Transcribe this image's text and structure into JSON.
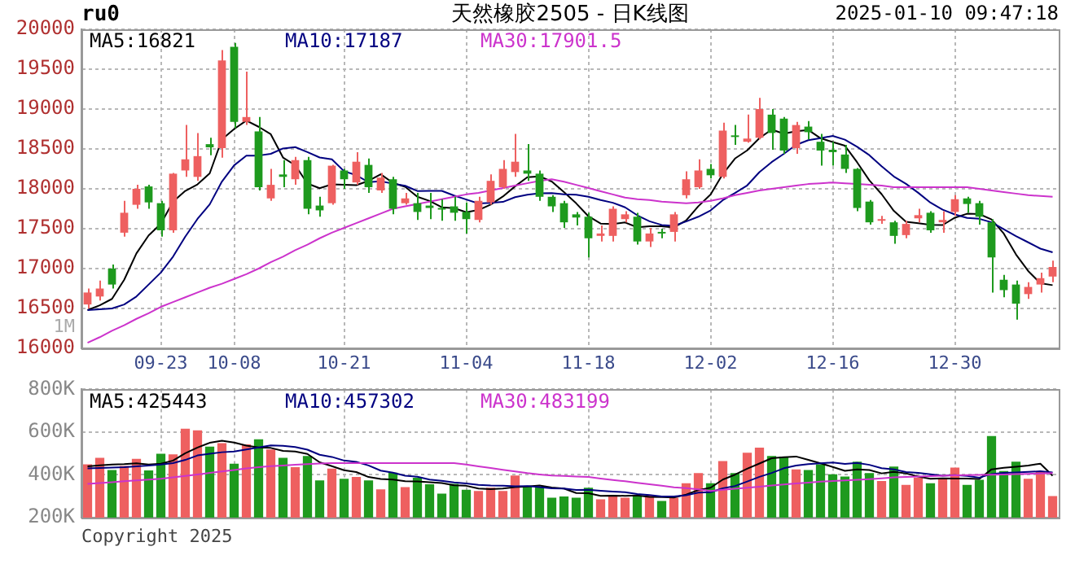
{
  "chart_data": [
    {
      "type": "candlestick",
      "title": "天然橡胶2505 - 日K线图",
      "annotations": [
        "ru0",
        "2025-01-10 09:47:18",
        "1M"
      ],
      "categories": [
        null,
        null,
        null,
        null,
        null,
        null,
        "09-23",
        null,
        null,
        null,
        null,
        null,
        "10-08",
        null,
        null,
        null,
        null,
        null,
        null,
        null,
        null,
        "10-21",
        null,
        null,
        null,
        null,
        null,
        null,
        null,
        null,
        null,
        "11-04",
        null,
        null,
        null,
        null,
        null,
        null,
        null,
        null,
        null,
        "11-18",
        null,
        null,
        null,
        null,
        null,
        null,
        null,
        null,
        null,
        "12-02",
        null,
        null,
        null,
        null,
        null,
        null,
        null,
        null,
        null,
        "12-16",
        null,
        null,
        null,
        null,
        null,
        null,
        null,
        null,
        null,
        "12-30",
        null,
        null,
        null,
        null,
        null,
        null,
        null,
        null
      ],
      "ohlc": [
        [
          16550,
          16750,
          16500,
          16700
        ],
        [
          16650,
          16850,
          16600,
          16750
        ],
        [
          17000,
          17050,
          16750,
          16800
        ],
        [
          17450,
          17850,
          17400,
          17700
        ],
        [
          17800,
          18050,
          17750,
          18000
        ],
        [
          18030,
          18050,
          17750,
          17830
        ],
        [
          17820,
          17850,
          17400,
          17480
        ],
        [
          17480,
          18200,
          17450,
          18190
        ],
        [
          18230,
          18800,
          18150,
          18370
        ],
        [
          18150,
          18700,
          18100,
          18410
        ],
        [
          18560,
          18640,
          18420,
          18520
        ],
        [
          18510,
          19740,
          18390,
          19610
        ],
        [
          19780,
          19830,
          18760,
          18840
        ],
        [
          18840,
          19470,
          18800,
          18900
        ],
        [
          18720,
          18900,
          17980,
          18020
        ],
        [
          17880,
          18250,
          17850,
          18050
        ],
        [
          18180,
          18360,
          18020,
          18150
        ],
        [
          18120,
          18400,
          18050,
          18360
        ],
        [
          18360,
          18400,
          17680,
          17750
        ],
        [
          17790,
          17900,
          17650,
          17730
        ],
        [
          17820,
          18300,
          17800,
          18290
        ],
        [
          18230,
          18250,
          18000,
          18120
        ],
        [
          18080,
          18460,
          18050,
          18340
        ],
        [
          18300,
          18380,
          17950,
          18020
        ],
        [
          17980,
          18200,
          17950,
          18140
        ],
        [
          18120,
          18150,
          17680,
          17750
        ],
        [
          17820,
          17950,
          17800,
          17880
        ],
        [
          17820,
          17950,
          17610,
          17710
        ],
        [
          17790,
          17950,
          17620,
          17760
        ],
        [
          17760,
          17870,
          17600,
          17740
        ],
        [
          17780,
          17900,
          17600,
          17700
        ],
        [
          17710,
          17830,
          17440,
          17620
        ],
        [
          17610,
          17900,
          17580,
          17850
        ],
        [
          17830,
          18180,
          17800,
          18100
        ],
        [
          18020,
          18360,
          18000,
          18250
        ],
        [
          18210,
          18690,
          18150,
          18340
        ],
        [
          18230,
          18560,
          18100,
          18190
        ],
        [
          18190,
          18230,
          17850,
          17900
        ],
        [
          17900,
          17920,
          17710,
          17780
        ],
        [
          17820,
          17850,
          17510,
          17580
        ],
        [
          17680,
          17710,
          17540,
          17640
        ],
        [
          17650,
          17700,
          17140,
          17380
        ],
        [
          17410,
          17540,
          17340,
          17440
        ],
        [
          17410,
          17780,
          17340,
          17750
        ],
        [
          17620,
          17720,
          17580,
          17680
        ],
        [
          17650,
          17700,
          17300,
          17340
        ],
        [
          17340,
          17510,
          17270,
          17440
        ],
        [
          17460,
          17500,
          17380,
          17440
        ],
        [
          17460,
          17710,
          17340,
          17680
        ],
        [
          17920,
          18220,
          17880,
          18120
        ],
        [
          18020,
          18370,
          18000,
          18230
        ],
        [
          18250,
          18310,
          18130,
          18170
        ],
        [
          18150,
          18830,
          18130,
          18730
        ],
        [
          18670,
          18800,
          18550,
          18650
        ],
        [
          18590,
          18930,
          18580,
          18630
        ],
        [
          18640,
          19140,
          18620,
          19000
        ],
        [
          18930,
          19000,
          18490,
          18700
        ],
        [
          18880,
          18900,
          18440,
          18480
        ],
        [
          18510,
          18840,
          18440,
          18800
        ],
        [
          18780,
          18850,
          18620,
          18710
        ],
        [
          18590,
          18690,
          18290,
          18480
        ],
        [
          18490,
          18590,
          18290,
          18460
        ],
        [
          18430,
          18550,
          18200,
          18250
        ],
        [
          18250,
          18260,
          17720,
          17760
        ],
        [
          17840,
          17860,
          17550,
          17580
        ],
        [
          17600,
          17660,
          17560,
          17620
        ],
        [
          17580,
          17600,
          17310,
          17410
        ],
        [
          17420,
          17600,
          17380,
          17560
        ],
        [
          17630,
          17750,
          17580,
          17670
        ],
        [
          17700,
          17720,
          17450,
          17480
        ],
        [
          17580,
          17720,
          17450,
          17610
        ],
        [
          17710,
          17920,
          17660,
          17870
        ],
        [
          17880,
          17900,
          17700,
          17810
        ],
        [
          17820,
          17850,
          17550,
          17650
        ],
        [
          17580,
          17620,
          16700,
          17140
        ],
        [
          16860,
          16920,
          16640,
          16730
        ],
        [
          16800,
          16850,
          16360,
          16560
        ],
        [
          16680,
          16830,
          16620,
          16770
        ],
        [
          16800,
          16950,
          16700,
          16880
        ],
        [
          16900,
          17100,
          16830,
          17020
        ]
      ],
      "colors": [
        "#ee6060",
        "#ee6060",
        "#1e9a1e",
        "#ee6060",
        "#ee6060",
        "#1e9a1e",
        "#1e9a1e",
        "#ee6060",
        "#ee6060",
        "#ee6060",
        "#1e9a1e",
        "#ee6060",
        "#1e9a1e",
        "#ee6060",
        "#1e9a1e",
        "#ee6060",
        "#1e9a1e",
        "#ee6060",
        "#1e9a1e",
        "#1e9a1e",
        "#ee6060",
        "#1e9a1e",
        "#ee6060",
        "#1e9a1e",
        "#ee6060",
        "#1e9a1e",
        "#ee6060",
        "#1e9a1e",
        "#1e9a1e",
        "#1e9a1e",
        "#1e9a1e",
        "#1e9a1e",
        "#ee6060",
        "#ee6060",
        "#ee6060",
        "#ee6060",
        "#1e9a1e",
        "#1e9a1e",
        "#1e9a1e",
        "#1e9a1e",
        "#1e9a1e",
        "#1e9a1e",
        "#ee6060",
        "#ee6060",
        "#ee6060",
        "#1e9a1e",
        "#ee6060",
        "#1e9a1e",
        "#ee6060",
        "#ee6060",
        "#ee6060",
        "#1e9a1e",
        "#ee6060",
        "#1e9a1e",
        "#ee6060",
        "#ee6060",
        "#1e9a1e",
        "#1e9a1e",
        "#ee6060",
        "#1e9a1e",
        "#1e9a1e",
        "#1e9a1e",
        "#1e9a1e",
        "#1e9a1e",
        "#1e9a1e",
        "#ee6060",
        "#1e9a1e",
        "#ee6060",
        "#ee6060",
        "#1e9a1e",
        "#ee6060",
        "#ee6060",
        "#1e9a1e",
        "#1e9a1e",
        "#1e9a1e",
        "#1e9a1e",
        "#1e9a1e",
        "#ee6060",
        "#ee6060",
        "#ee6060"
      ],
      "series": [
        {
          "type": "line",
          "name": "MA5:16821",
          "color": "#000000",
          "values": [
            16480,
            16540,
            16620,
            16860,
            17190,
            17416,
            17562,
            17840,
            17974,
            18056,
            18194,
            18620,
            18750,
            18856,
            18778,
            18684,
            18392,
            18296,
            18066,
            18008,
            18056,
            18050,
            18046,
            18100,
            18182,
            18074,
            18026,
            17900,
            17848,
            17768,
            17758,
            17706,
            17734,
            17802,
            17904,
            18032,
            18146,
            18156,
            18092,
            17958,
            17818,
            17656,
            17564,
            17558,
            17578,
            17518,
            17530,
            17530,
            17516,
            17604,
            17782,
            17928,
            18186,
            18380,
            18482,
            18636,
            18742,
            18692,
            18722,
            18738,
            18634,
            18586,
            18540,
            18332,
            18106,
            17934,
            17724,
            17586,
            17568,
            17548,
            17546,
            17638,
            17688,
            17684,
            17616,
            17440,
            17178,
            16970,
            16816,
            16792
          ]
        },
        {
          "type": "line",
          "name": "MA10:17187",
          "color": "#000080",
          "values": [
            16480,
            16490,
            16500,
            16550,
            16650,
            16800,
            16950,
            17150,
            17400,
            17623,
            17805,
            18091,
            18295,
            18415,
            18417,
            18439,
            18506,
            18523,
            18461,
            18393,
            18370,
            18221,
            18171,
            18083,
            18095,
            18065,
            18038,
            17973,
            17974,
            17975,
            17916,
            17866,
            17817,
            17825,
            17836,
            17895,
            17926,
            17945,
            17947,
            17931,
            17925,
            17901,
            17860,
            17825,
            17768,
            17668,
            17593,
            17547,
            17537,
            17591,
            17650,
            17729,
            17858,
            17948,
            18043,
            18209,
            18335,
            18439,
            18551,
            18610,
            18635,
            18664,
            18616,
            18527,
            18422,
            18284,
            18155,
            18063,
            17950,
            17827,
            17738,
            17679,
            17635,
            17624,
            17580,
            17493,
            17408,
            17329,
            17250,
            17204
          ]
        },
        {
          "type": "line",
          "name": "MA30:17901.5",
          "color": "#cc33cc",
          "values": [
            16070,
            16140,
            16220,
            16290,
            16370,
            16440,
            16520,
            16580,
            16640,
            16700,
            16760,
            16810,
            16870,
            16930,
            17000,
            17080,
            17150,
            17230,
            17300,
            17380,
            17450,
            17510,
            17570,
            17630,
            17690,
            17750,
            17780,
            17810,
            17840,
            17870,
            17900,
            17930,
            17950,
            17980,
            18010,
            18040,
            18070,
            18100,
            18120,
            18090,
            18050,
            18010,
            17970,
            17930,
            17890,
            17870,
            17860,
            17840,
            17830,
            17820,
            17830,
            17850,
            17880,
            17920,
            17950,
            17980,
            18000,
            18020,
            18040,
            18060,
            18070,
            18080,
            18070,
            18060,
            18050,
            18040,
            18020,
            18020,
            18020,
            18020,
            18020,
            18020,
            18020,
            18000,
            17980,
            17960,
            17940,
            17920,
            17910,
            17900
          ]
        }
      ],
      "ylim": [
        16000,
        20000
      ],
      "yticks": [
        16000,
        16500,
        17000,
        17500,
        18000,
        18500,
        19000,
        19500,
        20000
      ],
      "grid": true,
      "legend": "top left"
    },
    {
      "type": "bar",
      "annotations": [
        "Copyright 2025"
      ],
      "categories": [
        null,
        null,
        null,
        null,
        null,
        null,
        null,
        null,
        null,
        null,
        null,
        null,
        null,
        null,
        null,
        null,
        null,
        null,
        null,
        null,
        null,
        null,
        null,
        null,
        null,
        null,
        null,
        null,
        null,
        null,
        null,
        null,
        null,
        null,
        null,
        null,
        null,
        null,
        null,
        null,
        null,
        null,
        null,
        null,
        null,
        null,
        null,
        null,
        null,
        null,
        null,
        null,
        null,
        null,
        null,
        null,
        null,
        null,
        null,
        null,
        null,
        null,
        null,
        null,
        null,
        null,
        null,
        null,
        null,
        null,
        null,
        null,
        null,
        null,
        null,
        null,
        null,
        null,
        null,
        null
      ],
      "series": [
        {
          "type": "bar",
          "colors": [
            "#ee6060",
            "#ee6060",
            "#1e9a1e",
            "#ee6060",
            "#ee6060",
            "#1e9a1e",
            "#1e9a1e",
            "#ee6060",
            "#ee6060",
            "#ee6060",
            "#1e9a1e",
            "#ee6060",
            "#1e9a1e",
            "#ee6060",
            "#1e9a1e",
            "#ee6060",
            "#1e9a1e",
            "#ee6060",
            "#1e9a1e",
            "#1e9a1e",
            "#ee6060",
            "#1e9a1e",
            "#ee6060",
            "#1e9a1e",
            "#ee6060",
            "#1e9a1e",
            "#ee6060",
            "#1e9a1e",
            "#1e9a1e",
            "#1e9a1e",
            "#1e9a1e",
            "#1e9a1e",
            "#ee6060",
            "#ee6060",
            "#ee6060",
            "#ee6060",
            "#1e9a1e",
            "#1e9a1e",
            "#1e9a1e",
            "#1e9a1e",
            "#1e9a1e",
            "#1e9a1e",
            "#ee6060",
            "#ee6060",
            "#ee6060",
            "#1e9a1e",
            "#ee6060",
            "#1e9a1e",
            "#ee6060",
            "#ee6060",
            "#ee6060",
            "#1e9a1e",
            "#ee6060",
            "#1e9a1e",
            "#ee6060",
            "#ee6060",
            "#1e9a1e",
            "#1e9a1e",
            "#ee6060",
            "#1e9a1e",
            "#1e9a1e",
            "#1e9a1e",
            "#1e9a1e",
            "#1e9a1e",
            "#1e9a1e",
            "#ee6060",
            "#1e9a1e",
            "#ee6060",
            "#ee6060",
            "#1e9a1e",
            "#ee6060",
            "#ee6060",
            "#1e9a1e",
            "#1e9a1e",
            "#1e9a1e",
            "#1e9a1e",
            "#1e9a1e",
            "#ee6060",
            "#ee6060",
            "#ee6060"
          ],
          "values": [
            449000,
            480000,
            423000,
            442000,
            475000,
            421000,
            499000,
            496000,
            616000,
            608000,
            532000,
            548000,
            452000,
            543000,
            566000,
            519000,
            480000,
            436000,
            488000,
            374000,
            429000,
            382000,
            390000,
            374000,
            332000,
            410000,
            343000,
            387000,
            356000,
            312000,
            358000,
            330000,
            325000,
            340000,
            325000,
            397000,
            345000,
            345000,
            293000,
            299000,
            293000,
            340000,
            286000,
            299000,
            293000,
            304000,
            304000,
            278000,
            293000,
            361000,
            408000,
            361000,
            465000,
            408000,
            504000,
            527000,
            488000,
            486000,
            426000,
            423000,
            449000,
            403000,
            392000,
            462000,
            408000,
            371000,
            439000,
            353000,
            387000,
            361000,
            382000,
            434000,
            353000,
            377000,
            582000,
            418000,
            462000,
            382000,
            416000,
            301000
          ]
        },
        {
          "type": "line",
          "name": "MA5:425443",
          "color": "#000000",
          "values": [
            440000,
            445000,
            448000,
            450000,
            454000,
            448000,
            452000,
            467000,
            501000,
            528000,
            550000,
            560000,
            551000,
            537000,
            528000,
            526000,
            512000,
            509000,
            498000,
            459000,
            441000,
            422000,
            413000,
            390000,
            381000,
            378000,
            370000,
            369000,
            366000,
            362000,
            351000,
            349000,
            336000,
            333000,
            336000,
            343000,
            346000,
            350000,
            341000,
            336000,
            315000,
            314000,
            302000,
            303000,
            302000,
            304000,
            297000,
            296000,
            294000,
            308000,
            329000,
            340000,
            378000,
            401000,
            429000,
            453000,
            478000,
            483000,
            486000,
            470000,
            454000,
            437000,
            419000,
            426000,
            423000,
            407000,
            414000,
            407000,
            392000,
            382000,
            384000,
            383000,
            383000,
            381000,
            426000,
            433000,
            438000,
            444000,
            452000,
            396000
          ]
        },
        {
          "type": "line",
          "name": "MA10:457302",
          "color": "#000080",
          "values": [
            430000,
            432000,
            434000,
            436000,
            440000,
            444000,
            448000,
            455000,
            470000,
            491000,
            499000,
            506000,
            509000,
            519000,
            528000,
            538000,
            536000,
            530000,
            518000,
            494000,
            484000,
            467000,
            461000,
            444000,
            420000,
            410000,
            396000,
            391000,
            378000,
            372000,
            365000,
            360000,
            353000,
            350000,
            349000,
            347000,
            348000,
            343000,
            337000,
            336000,
            329000,
            330000,
            326000,
            322000,
            319000,
            310000,
            306000,
            299000,
            299000,
            305000,
            317000,
            319000,
            337000,
            348000,
            369000,
            391000,
            409000,
            431000,
            444000,
            450000,
            454000,
            458000,
            451000,
            456000,
            447000,
            431000,
            426000,
            413000,
            409000,
            403000,
            396000,
            399000,
            395000,
            387000,
            404000,
            409000,
            411000,
            414000,
            417000,
            411000
          ]
        },
        {
          "type": "line",
          "name": "MA30:483199",
          "color": "#cc33cc",
          "values": [
            358000,
            362000,
            366000,
            370000,
            374000,
            378000,
            382000,
            388000,
            395000,
            402000,
            409000,
            416000,
            423000,
            430000,
            436000,
            441000,
            444000,
            447000,
            450000,
            453000,
            455000,
            455000,
            455000,
            455000,
            455000,
            455000,
            455000,
            455000,
            455000,
            455000,
            455000,
            448000,
            440000,
            432000,
            424000,
            416000,
            408000,
            402000,
            397000,
            395000,
            392000,
            390000,
            383000,
            376000,
            370000,
            363000,
            356000,
            349000,
            342000,
            338000,
            332000,
            325000,
            330000,
            335000,
            340000,
            345000,
            350000,
            355000,
            360000,
            364000,
            368000,
            371000,
            374000,
            377000,
            380000,
            384000,
            388000,
            390000,
            392000,
            394000,
            396000,
            398000,
            399000,
            400000,
            401000,
            402000,
            404000,
            405000,
            407000,
            408000
          ]
        }
      ],
      "ylim": [
        200000,
        800000
      ],
      "yticks": [
        {
          "value": 200000,
          "label": "200K"
        },
        {
          "value": 400000,
          "label": "400K"
        },
        {
          "value": 600000,
          "label": "600K"
        },
        {
          "value": 800000,
          "label": "800K"
        }
      ],
      "grid": true,
      "legend": "top left",
      "tick_labels": "y"
    }
  ]
}
